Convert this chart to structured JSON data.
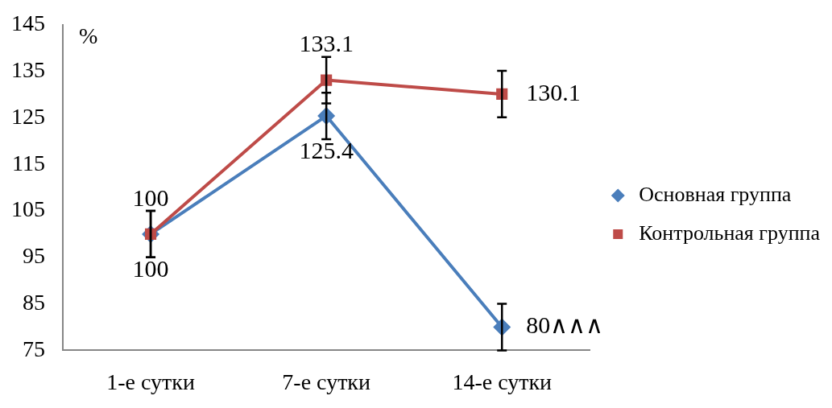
{
  "chart_data": {
    "type": "line",
    "ylabel": "%",
    "categories": [
      "1-е сутки",
      "7-е сутки",
      "14-е сутки"
    ],
    "series": [
      {
        "name": "Основная группа",
        "color": "#4a7ebb",
        "values": [
          100,
          125.4,
          80
        ],
        "errors": [
          5,
          5,
          5
        ],
        "value_labels": [
          "100",
          "125.4",
          "80∧∧∧"
        ],
        "marker": "diamond"
      },
      {
        "name": "Контрольная группа",
        "color": "#be4b48",
        "values": [
          100,
          133.1,
          130.1
        ],
        "errors": [
          5,
          5,
          5
        ],
        "value_labels": [
          "100",
          "133.1",
          "130.1"
        ],
        "marker": "square"
      }
    ],
    "ylim": [
      75,
      145
    ],
    "yticks": [
      75,
      85,
      95,
      105,
      115,
      125,
      135,
      145
    ],
    "grid": false,
    "legend": "right",
    "line_style": "solid"
  }
}
